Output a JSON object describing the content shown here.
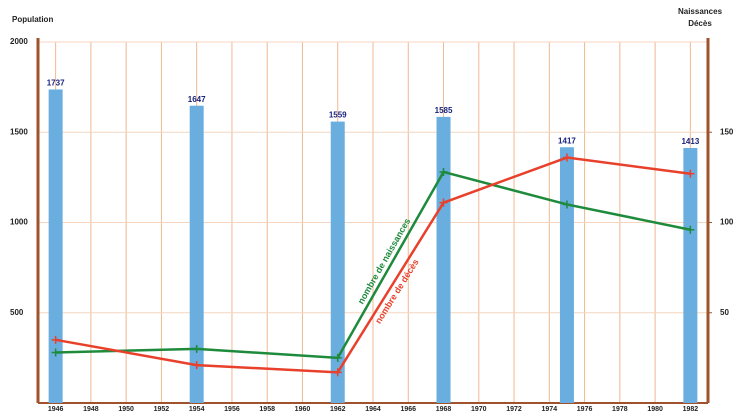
{
  "chart_data": {
    "type": "bar-line",
    "y_label": "Population",
    "y2_label": [
      "Naissances",
      "Décès"
    ],
    "x": [
      1946,
      1954,
      1962,
      1968,
      1975,
      1982
    ],
    "xlim": [
      1945,
      1983
    ],
    "xticks": [
      1946,
      1948,
      1950,
      1952,
      1954,
      1956,
      1958,
      1960,
      1962,
      1964,
      1966,
      1968,
      1970,
      1972,
      1974,
      1976,
      1978,
      1980,
      1982
    ],
    "ylim": [
      0,
      2000
    ],
    "yticks": [
      500,
      1000,
      1500,
      2000
    ],
    "y2lim": [
      0,
      200
    ],
    "y2ticks": [
      50,
      100,
      150
    ],
    "grid": true,
    "series": [
      {
        "name": "Population",
        "type": "bar",
        "color": "#6aaee0",
        "values": [
          1737,
          1647,
          1559,
          1585,
          1417,
          1413
        ]
      },
      {
        "name": "nombre de naissances",
        "type": "line",
        "axis": "y2",
        "color": "#1e8a3c",
        "values": [
          28,
          30,
          25,
          128,
          110,
          96
        ]
      },
      {
        "name": "nombre de décès",
        "type": "line",
        "axis": "y2",
        "color": "#e8402a",
        "values": [
          35,
          21,
          17,
          111,
          136,
          127
        ]
      }
    ]
  }
}
